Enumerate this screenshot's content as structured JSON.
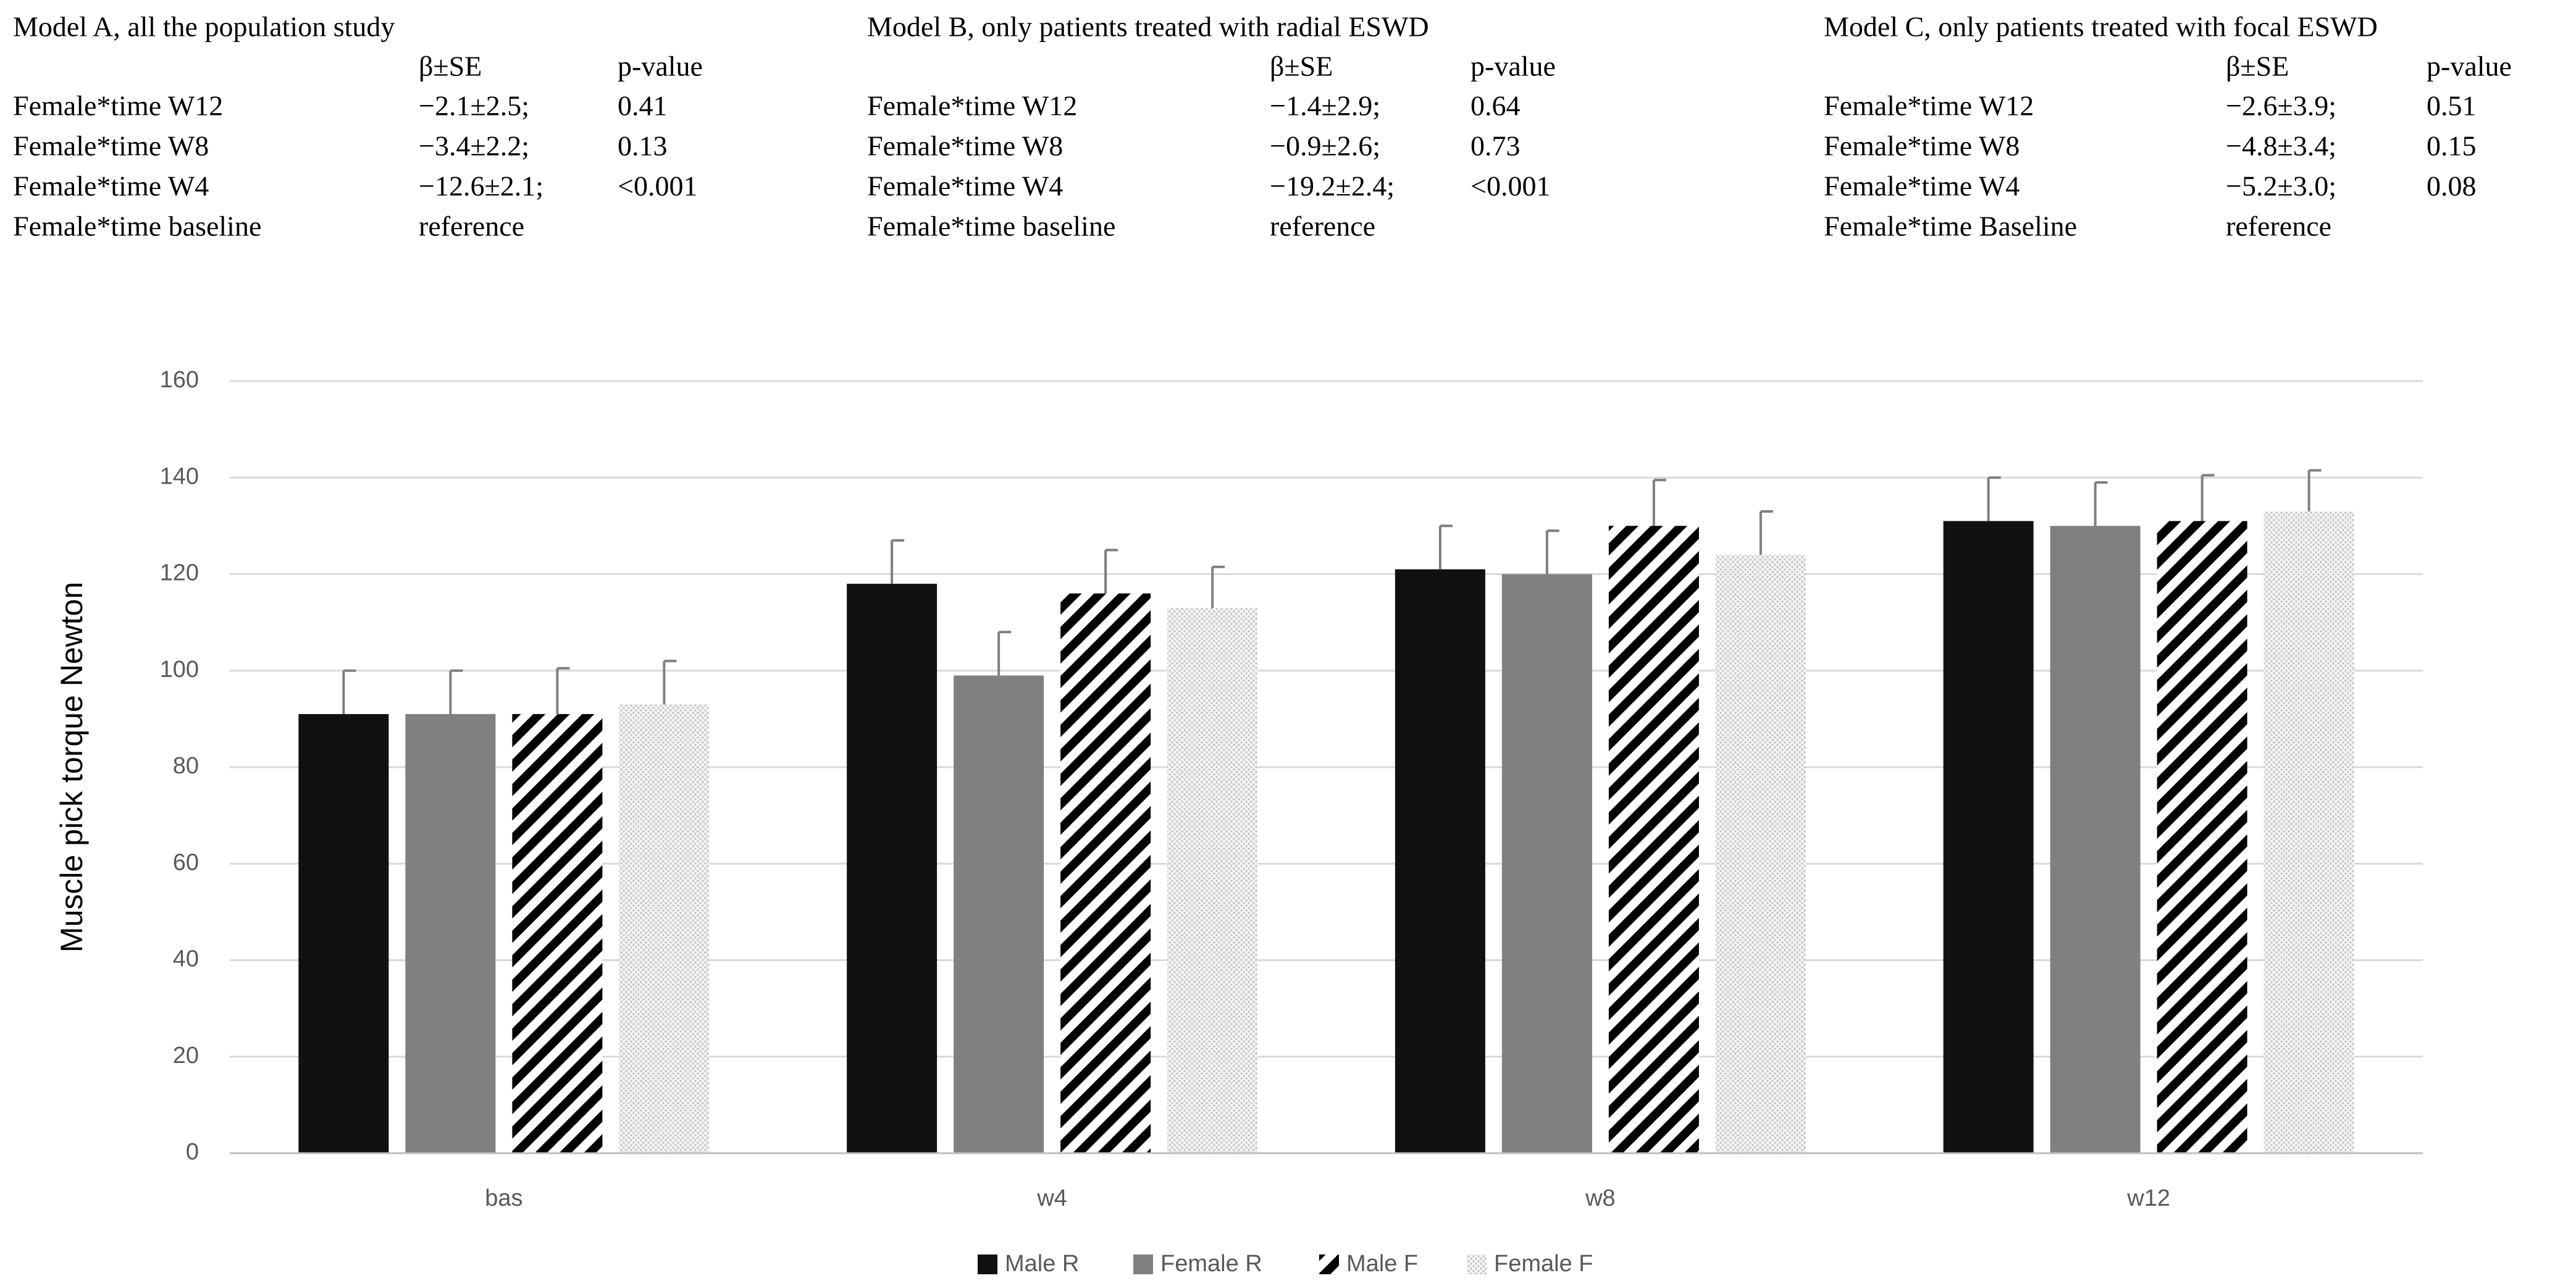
{
  "models": [
    {
      "title": "Model A, all the population study",
      "header": [
        "β±SE",
        "p-value"
      ],
      "rows": [
        [
          "Female*time W12",
          "−2.1±2.5;",
          "0.41"
        ],
        [
          "Female*time W8",
          "−3.4±2.2;",
          "0.13"
        ],
        [
          "Female*time W4",
          "−12.6±2.1;",
          "<0.001"
        ],
        [
          "Female*time baseline",
          "reference",
          null
        ]
      ]
    },
    {
      "title": "Model B, only patients treated with radial ESWD",
      "header": [
        "β±SE",
        "p-value"
      ],
      "rows": [
        [
          "Female*time W12",
          "−1.4±2.9;",
          "0.64"
        ],
        [
          "Female*time W8",
          "−0.9±2.6;",
          "0.73"
        ],
        [
          "Female*time W4",
          "−19.2±2.4;",
          "<0.001"
        ],
        [
          "Female*time baseline",
          "reference",
          null
        ]
      ]
    },
    {
      "title": "Model C, only patients treated with focal ESWD",
      "header": [
        "β±SE",
        "p-value"
      ],
      "rows": [
        [
          "Female*time W12",
          "−2.6±3.9;",
          "0.51"
        ],
        [
          "Female*time W8",
          "−4.8±3.4;",
          "0.15"
        ],
        [
          "Female*time W4",
          "−5.2±3.0;",
          "0.08"
        ],
        [
          "Female*time Baseline",
          "reference",
          null
        ]
      ]
    }
  ],
  "chart_data": {
    "type": "bar",
    "y_label": "Muscle pick torque Newton",
    "categories": [
      "bas",
      "w4",
      "w8",
      "w12"
    ],
    "series": [
      {
        "name": "Male R",
        "color": "#111111",
        "pattern": "solid",
        "values": [
          91,
          118,
          121,
          131
        ],
        "errors": [
          9,
          9,
          9,
          9
        ]
      },
      {
        "name": "Female R",
        "color": "#808080",
        "pattern": "solid",
        "values": [
          91,
          99,
          120,
          130
        ],
        "errors": [
          9,
          9,
          9,
          9
        ]
      },
      {
        "name": "Male F",
        "color": "#000000",
        "pattern": "stripes",
        "values": [
          91,
          116,
          130,
          131
        ],
        "errors": [
          9.5,
          9,
          9.5,
          9.5
        ]
      },
      {
        "name": "Female F",
        "color": "#bfbfbf",
        "pattern": "dots",
        "values": [
          93,
          113,
          124,
          133
        ],
        "errors": [
          9,
          8.5,
          9,
          8.5
        ]
      }
    ],
    "ylim": [
      0,
      160
    ],
    "yticks": [
      0,
      20,
      40,
      60,
      80,
      100,
      120,
      140,
      160
    ],
    "grid": true,
    "legend": "bottom"
  }
}
